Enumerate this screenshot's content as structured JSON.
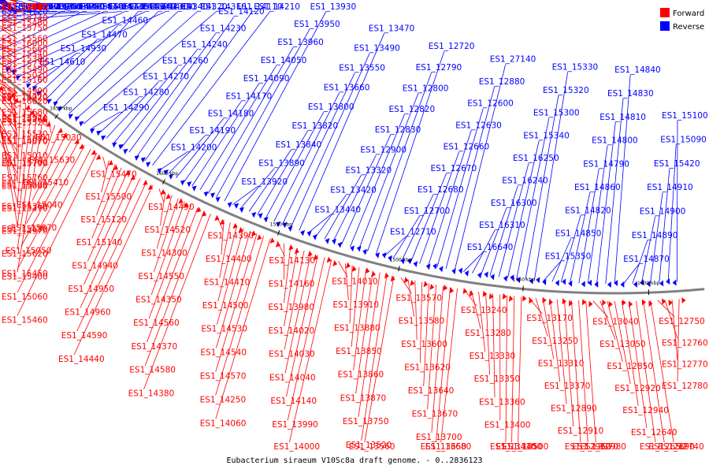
{
  "title": "Eubacterium siraeum V10Sc8a draft genome. - 0..2836123",
  "legend": [
    {
      "label": "Forward",
      "color": "#ff0000"
    },
    {
      "label": "Reverse",
      "color": "#0000ff"
    }
  ],
  "colors": {
    "forward": "#ff0000",
    "reverse": "#0000ff",
    "backbone": "#808080"
  },
  "ticks": [
    "1800 kbp",
    "1750 kbp",
    "1700 kbp",
    "1650 kbp",
    "1600 kbp",
    "1550 kbp",
    "1500 kbp",
    "1450 kbp",
    "1400 kbp"
  ],
  "reverse_labels": [
    "ES1_16650",
    "ES1_16520",
    "ES1_16320",
    "ES1_16230",
    "ES1_16220",
    "ES1_16210",
    "ES1_16200",
    "ES1_15930",
    "ES1_15920",
    "ES1_15890",
    "ES1_15880",
    "ES1_15870",
    "ES1_15860",
    "ES1_15800",
    "ES1_15710",
    "ES1_16110",
    "ES1_15940",
    "ES1_15700",
    "ES1_15430",
    "ES1_15310",
    "ES1_15290",
    "ES1_15270",
    "ES1_15260",
    "ES1_15250",
    "ES1_15240",
    "ES1_15230",
    "ES1_15220",
    "ES1_15200",
    "ES1_15190",
    "ES1_15180",
    "ES1_15170",
    "ES1_15080",
    "ES1_14780",
    "ES1_14750",
    "ES1_14740",
    "ES1_14730",
    "ES1_14720",
    "ES1_14710",
    "ES1_14700",
    "ES1_14690",
    "ES1_14680",
    "ES1_14660",
    "ES1_14650",
    "ES1_14640",
    "ES1_14630",
    "ES1_14610",
    "ES1_14930",
    "ES1_14470",
    "ES1_14460",
    "ES1_14450",
    "ES1_14430",
    "ES1_14340",
    "ES1_14320",
    "ES1_14310",
    "ES1_14290",
    "ES1_14280",
    "ES1_14270",
    "ES1_14260",
    "ES1_14240",
    "ES1_14230",
    "ES1_14120",
    "ES1_14110",
    "ES1_14210",
    "ES1_14200",
    "ES1_14190",
    "ES1_14180",
    "ES1_14170",
    "ES1_14090",
    "ES1_14050",
    "ES1_13960",
    "ES1_13950",
    "ES1_13930",
    "ES1_13920",
    "ES1_13890",
    "ES1_13840",
    "ES1_13820",
    "ES1_13800",
    "ES1_13660",
    "ES1_13550",
    "ES1_13490",
    "ES1_13470",
    "ES1_13440",
    "ES1_13420",
    "ES1_13320",
    "ES1_12900",
    "ES1_12830",
    "ES1_12820",
    "ES1_12800",
    "ES1_12790",
    "ES1_12720",
    "ES1_12710",
    "ES1_12700",
    "ES1_12680",
    "ES1_12670",
    "ES1_12660",
    "ES1_12630",
    "ES1_12600",
    "ES1_12880",
    "ES1_27140",
    "ES1_16640",
    "ES1_16310",
    "ES1_16300",
    "ES1_16240",
    "ES1_16250",
    "ES1_15340",
    "ES1_15300",
    "ES1_15320",
    "ES1_15330",
    "ES1_15350",
    "ES1_14850",
    "ES1_14820",
    "ES1_14860",
    "ES1_14790",
    "ES1_14800",
    "ES1_14810",
    "ES1_14830",
    "ES1_14840",
    "ES1_14870",
    "ES1_14890",
    "ES1_14900",
    "ES1_14910",
    "ES1_15420",
    "ES1_15090",
    "ES1_15100"
  ],
  "forward_labels": [
    "ES1_16540",
    "ES1_16470",
    "ES1_16380",
    "ES1_16460",
    "ES1_16340",
    "ES1_16190",
    "ES1_16140",
    "ES1_16030",
    "ES1_16050",
    "ES1_15850",
    "ES1_16170",
    "ES1_15970",
    "ES1_15980",
    "ES1_16150",
    "ES1_15690",
    "ES1_15820",
    "ES1_15640",
    "ES1_15990",
    "ES1_15720",
    "ES1_15580",
    "ES1_16160",
    "ES1_16040",
    "ES1_15840",
    "ES1_15650",
    "ES1_15480",
    "ES1_16000",
    "ES1_15730",
    "ES1_15610",
    "ES1_15390",
    "ES1_16010",
    "ES1_15740",
    "ES1_15560",
    "ES1_15380",
    "ES1_15160",
    "ES1_16020",
    "ES1_15520",
    "ES1_15110",
    "ES1_15750",
    "ES1_15660",
    "ES1_15490",
    "ES1_14990",
    "ES1_15680",
    "ES1_15530",
    "ES1_15010",
    "ES1_15760",
    "ES1_15540",
    "ES1_15020",
    "ES1_15770",
    "ES1_15570",
    "ES1_15070",
    "ES1_15780",
    "ES1_15590",
    "ES1_15360",
    "ES1_15130",
    "ES1_14920",
    "ES1_14760",
    "ES1_14670",
    "ES1_15790",
    "ES1_15600",
    "ES1_15370",
    "ES1_14970",
    "ES1_15620",
    "ES1_15400",
    "ES1_15030",
    "ES1_15630",
    "ES1_15410",
    "ES1_15040",
    "ES1_15670",
    "ES1_15050",
    "ES1_15450",
    "ES1_15060",
    "ES1_15460",
    "ES1_15470",
    "ES1_15500",
    "ES1_15120",
    "ES1_15140",
    "ES1_14940",
    "ES1_14950",
    "ES1_14960",
    "ES1_14590",
    "ES1_14440",
    "ES1_14490",
    "ES1_14520",
    "ES1_14300",
    "ES1_14550",
    "ES1_14350",
    "ES1_14560",
    "ES1_14370",
    "ES1_14580",
    "ES1_14380",
    "ES1_14390",
    "ES1_14400",
    "ES1_14410",
    "ES1_14500",
    "ES1_14530",
    "ES1_14540",
    "ES1_14570",
    "ES1_14250",
    "ES1_14060",
    "ES1_14130",
    "ES1_14160",
    "ES1_13980",
    "ES1_14020",
    "ES1_14030",
    "ES1_14040",
    "ES1_14140",
    "ES1_13990",
    "ES1_14000",
    "ES1_14010",
    "ES1_13910",
    "ES1_13880",
    "ES1_13850",
    "ES1_13860",
    "ES1_13870",
    "ES1_13750",
    "ES1_13520",
    "ES1_13560",
    "ES1_13570",
    "ES1_13580",
    "ES1_13600",
    "ES1_13620",
    "ES1_13640",
    "ES1_13670",
    "ES1_13700",
    "ES1_13650",
    "ES1_13680",
    "ES1_13240",
    "ES1_13280",
    "ES1_13330",
    "ES1_13350",
    "ES1_13360",
    "ES1_13400",
    "ES1_13410",
    "ES1_13450",
    "ES1_13500",
    "ES1_13170",
    "ES1_13250",
    "ES1_13310",
    "ES1_13370",
    "ES1_12890",
    "ES1_12910",
    "ES1_12960",
    "ES1_12970",
    "ES1_12980",
    "ES1_13040",
    "ES1_13050",
    "ES1_12850",
    "ES1_12920",
    "ES1_12940",
    "ES1_12640",
    "ES1_12650",
    "ES1_12690",
    "ES1_12740",
    "ES1_12750",
    "ES1_12760",
    "ES1_12770",
    "ES1_12780"
  ]
}
